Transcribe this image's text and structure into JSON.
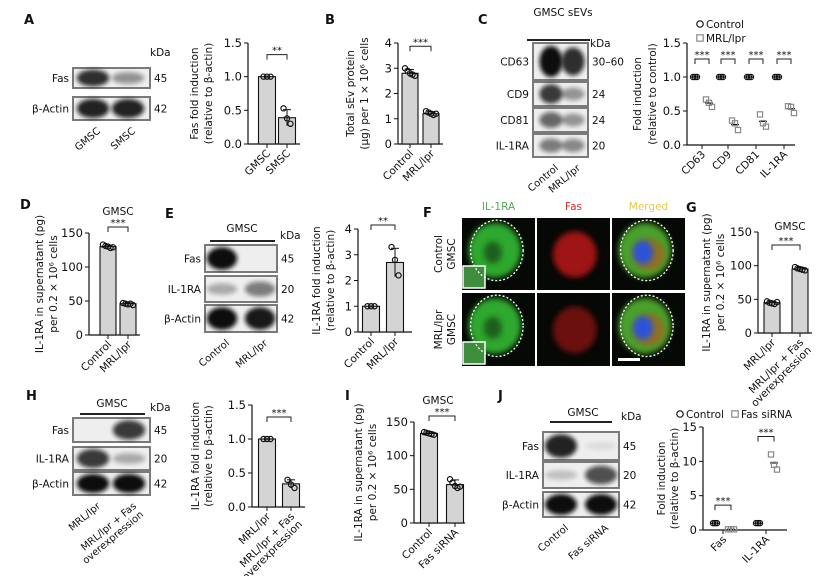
{
  "panel_letters": [
    "A",
    "B",
    "C",
    "D",
    "E",
    "F",
    "G",
    "H",
    "I",
    "J"
  ],
  "blots": {
    "A": {
      "title": "",
      "kda_label": "kDa",
      "rows": [
        {
          "label": "Fas",
          "kda": "45"
        },
        {
          "label": "β-Actin",
          "kda": "42"
        }
      ],
      "lanes": [
        "GMSC",
        "SMSC"
      ]
    },
    "C": {
      "title": "GMSC sEVs",
      "kda_label": "kDa",
      "rows": [
        {
          "label": "CD63",
          "kda": "30–60"
        },
        {
          "label": "CD9",
          "kda": "24"
        },
        {
          "label": "CD81",
          "kda": "24"
        },
        {
          "label": "IL-1RA",
          "kda": "20"
        }
      ],
      "lanes": [
        "Control",
        "MRL/lpr"
      ]
    },
    "E": {
      "title": "GMSC",
      "kda_label": "kDa",
      "rows": [
        {
          "label": "Fas",
          "kda": "45"
        },
        {
          "label": "IL-1RA",
          "kda": "20"
        },
        {
          "label": "β-Actin",
          "kda": "42"
        }
      ],
      "lanes": [
        "Control",
        "MRL/lpr"
      ]
    },
    "H": {
      "title": "GMSC",
      "kda_label": "kDa",
      "rows": [
        {
          "label": "Fas",
          "kda": "45"
        },
        {
          "label": "IL-1RA",
          "kda": "20"
        },
        {
          "label": "β-Actin",
          "kda": "42"
        }
      ],
      "lanes": [
        "MRL/lpr",
        "MRL/lpr + Fas|overexpression"
      ]
    },
    "J": {
      "title": "GMSC",
      "kda_label": "kDa",
      "rows": [
        {
          "label": "Fas",
          "kda": "45"
        },
        {
          "label": "IL-1RA",
          "kda": "20"
        },
        {
          "label": "β-Actin",
          "kda": "42"
        }
      ],
      "lanes": [
        "Control",
        "Fas siRNA"
      ]
    }
  },
  "microscopy": {
    "channels": [
      {
        "label": "IL-1RA",
        "color": "#4caf50"
      },
      {
        "label": "Fas",
        "color": "#d32f2f"
      },
      {
        "label": "Merged",
        "color": "#e6c84a"
      }
    ],
    "rows": [
      [
        "Control",
        "GMSC"
      ],
      [
        "MRL/lpr",
        "GMSC"
      ]
    ]
  },
  "chart_data": [
    {
      "id": "A",
      "type": "bar",
      "title": "",
      "ylabel": [
        "Fas fold induction",
        "(relative to β-actin)"
      ],
      "ylim": [
        0,
        1.5
      ],
      "yticks": [
        "0.0",
        "0.5",
        "1.0",
        "1.5"
      ],
      "categories": [
        "GMSC",
        "SMSC"
      ],
      "means": [
        1.0,
        0.39
      ],
      "sd": [
        0,
        0.12
      ],
      "points": [
        [
          1,
          1,
          1
        ],
        [
          0.53,
          0.38,
          0.3
        ]
      ],
      "significance": "**"
    },
    {
      "id": "B",
      "type": "bar",
      "title": "",
      "ylabel": [
        "Total sEv protein",
        "(μg) per 1 × 10⁶ cells"
      ],
      "ylim": [
        0,
        4
      ],
      "yticks": [
        "0",
        "1",
        "2",
        "3",
        "4"
      ],
      "categories": [
        "Control",
        "MRL/lpr"
      ],
      "means": [
        2.8,
        1.2
      ],
      "sd": [
        0.15,
        0.08
      ],
      "points": [
        [
          3.0,
          2.9,
          2.8,
          2.75,
          2.7
        ],
        [
          1.3,
          1.25,
          1.2,
          1.15,
          1.2
        ]
      ],
      "significance": "***"
    },
    {
      "id": "C",
      "type": "scatter",
      "title": "",
      "ylabel": [
        "Fold induction",
        "(relative to control)"
      ],
      "ylim": [
        0,
        1.5
      ],
      "yticks": [
        "0.0",
        "0.5",
        "1.0",
        "1.5"
      ],
      "categories": [
        "CD63",
        "CD9",
        "CD81",
        "IL-1RA"
      ],
      "series": [
        {
          "name": "Control",
          "marker": "circle",
          "color": "#111111",
          "values": [
            [
              1,
              1,
              1
            ],
            [
              1,
              1,
              1
            ],
            [
              1,
              1,
              1
            ],
            [
              1,
              1,
              1
            ]
          ]
        },
        {
          "name": "MRL/lpr",
          "marker": "square",
          "color": "#8a8a8a",
          "values": [
            [
              0.67,
              0.62,
              0.56
            ],
            [
              0.36,
              0.32,
              0.22
            ],
            [
              0.45,
              0.32,
              0.27
            ],
            [
              0.57,
              0.56,
              0.47
            ]
          ]
        }
      ],
      "significance": [
        "***",
        "***",
        "***",
        "***"
      ],
      "legend": "top"
    },
    {
      "id": "D",
      "type": "bar",
      "title": "GMSC",
      "ylabel": [
        "IL-1RA in supernatant (pg)",
        "per 0.2 × 10⁶ cells"
      ],
      "ylim": [
        0,
        150
      ],
      "yticks": [
        "0",
        "50",
        "100",
        "150"
      ],
      "categories": [
        "Control",
        "MRL/lpr"
      ],
      "means": [
        130,
        46
      ],
      "sd": [
        2,
        1
      ],
      "points": [
        [
          133,
          131,
          130,
          128,
          129
        ],
        [
          47,
          46,
          45,
          46,
          44
        ]
      ],
      "significance": "***"
    },
    {
      "id": "E",
      "type": "bar",
      "title": "",
      "ylabel": [
        "IL-1RA fold induction",
        "(relative to β-actin)"
      ],
      "ylim": [
        0,
        4
      ],
      "yticks": [
        "0",
        "1",
        "2",
        "3",
        "4"
      ],
      "categories": [
        "Control",
        "MRL/lpr"
      ],
      "means": [
        1.0,
        2.7
      ],
      "sd": [
        0,
        0.55
      ],
      "points": [
        [
          1,
          1,
          1
        ],
        [
          3.3,
          2.8,
          2.2
        ]
      ],
      "significance": "**"
    },
    {
      "id": "G",
      "type": "bar",
      "title": "GMSC",
      "ylabel": [
        "IL-1RA in supernatant (pg)",
        "per 0.2 × 10⁶ cells"
      ],
      "ylim": [
        0,
        150
      ],
      "yticks": [
        "0",
        "50",
        "100",
        "150"
      ],
      "categories": [
        "MRL/lpr",
        "MRL/lpr + Fas|overexpression"
      ],
      "means": [
        45,
        95
      ],
      "sd": [
        2,
        2
      ],
      "points": [
        [
          47,
          45,
          44,
          43,
          46
        ],
        [
          98,
          96,
          95,
          94,
          93
        ]
      ],
      "significance": "***"
    },
    {
      "id": "H",
      "type": "bar",
      "title": "",
      "ylabel": [
        "IL-1RA fold induction",
        "(relative to β-actin)"
      ],
      "ylim": [
        0,
        1.5
      ],
      "yticks": [
        "0.0",
        "0.5",
        "1.0",
        "1.5"
      ],
      "categories": [
        "MRL/lpr",
        "MRL/lpr + Fas|overexpression"
      ],
      "means": [
        1.0,
        0.34
      ],
      "sd": [
        0,
        0.06
      ],
      "points": [
        [
          1,
          1,
          1
        ],
        [
          0.4,
          0.33,
          0.28
        ]
      ],
      "significance": "***"
    },
    {
      "id": "I",
      "type": "bar",
      "title": "GMSC",
      "ylabel": [
        "IL-1RA in supernatant (pg)",
        "per 0.2 × 10⁶ cells"
      ],
      "ylim": [
        0,
        150
      ],
      "yticks": [
        "0",
        "50",
        "100",
        "150"
      ],
      "categories": [
        "Control",
        "Fas siRNA"
      ],
      "means": [
        133,
        57
      ],
      "sd": [
        2,
        7
      ],
      "points": [
        [
          135,
          134,
          133,
          132,
          131
        ],
        [
          65,
          60,
          55,
          52,
          54
        ]
      ],
      "significance": "***"
    },
    {
      "id": "J",
      "type": "scatter",
      "title": "",
      "ylabel": [
        "Fold induction",
        "(relative to β-actin)"
      ],
      "ylim": [
        0,
        15
      ],
      "yticks": [
        "0",
        "5",
        "10",
        "15"
      ],
      "categories": [
        "Fas",
        "IL-1RA"
      ],
      "series": [
        {
          "name": "Control",
          "marker": "circle",
          "color": "#111111",
          "values": [
            [
              1,
              1,
              1
            ],
            [
              1,
              1,
              1
            ]
          ]
        },
        {
          "name": "Fas siRNA",
          "marker": "square",
          "color": "#8a8a8a",
          "values": [
            [
              0.1,
              0.1,
              0.1
            ],
            [
              11,
              9.5,
              8.8
            ]
          ]
        }
      ],
      "significance": [
        "***",
        "***"
      ],
      "legend": "top"
    }
  ]
}
